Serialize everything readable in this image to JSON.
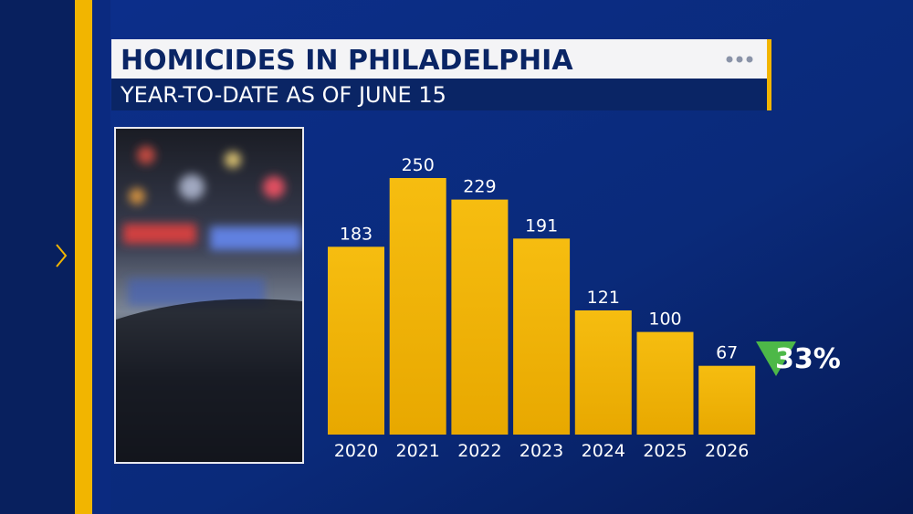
{
  "chart_data": {
    "type": "bar",
    "title": "HOMICIDES IN PHILADELPHIA",
    "subtitle": "YEAR-TO-DATE AS OF JUNE 15",
    "categories": [
      "2020",
      "2021",
      "2022",
      "2023",
      "2024",
      "2025",
      "2026"
    ],
    "values": [
      183,
      250,
      229,
      191,
      121,
      100,
      67
    ],
    "color": "#f2b500",
    "annotation": "33%"
  }
}
